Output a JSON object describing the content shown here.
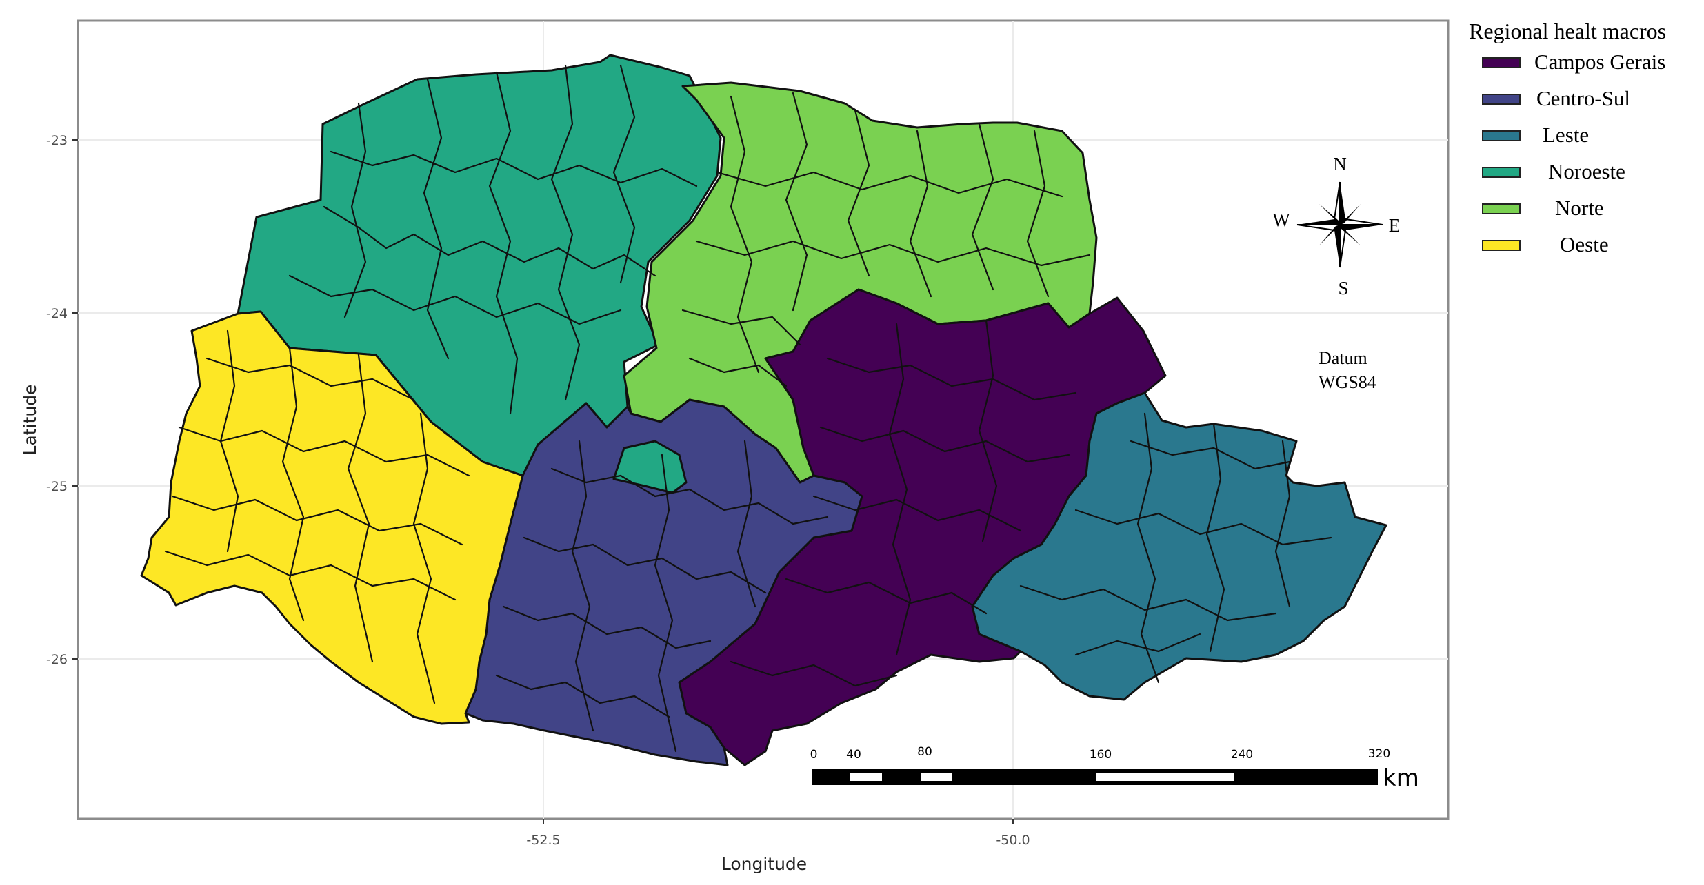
{
  "axes": {
    "xlabel": "Longitude",
    "ylabel": "Latitude",
    "x_ticks": [
      "-52.5",
      "-50.0"
    ],
    "y_ticks": [
      "-23",
      "-24",
      "-25",
      "-26"
    ]
  },
  "legend": {
    "title": "Regional healt macros",
    "items": [
      {
        "label": "Campos Gerais",
        "color": "#440154"
      },
      {
        "label": "Centro-Sul",
        "color": "#414487"
      },
      {
        "label": "Leste",
        "color": "#2a788e"
      },
      {
        "label": "Noroeste",
        "color": "#22a884"
      },
      {
        "label": "Norte",
        "color": "#7ad151"
      },
      {
        "label": "Oeste",
        "color": "#fde725"
      }
    ]
  },
  "compass": {
    "n": "N",
    "s": "S",
    "e": "E",
    "w": "W"
  },
  "datum": {
    "line1": "Datum",
    "line2": "WGS84"
  },
  "scale_bar": {
    "labels": [
      "0",
      "40",
      "80",
      "160",
      "240",
      "320"
    ],
    "unit": "km"
  }
}
